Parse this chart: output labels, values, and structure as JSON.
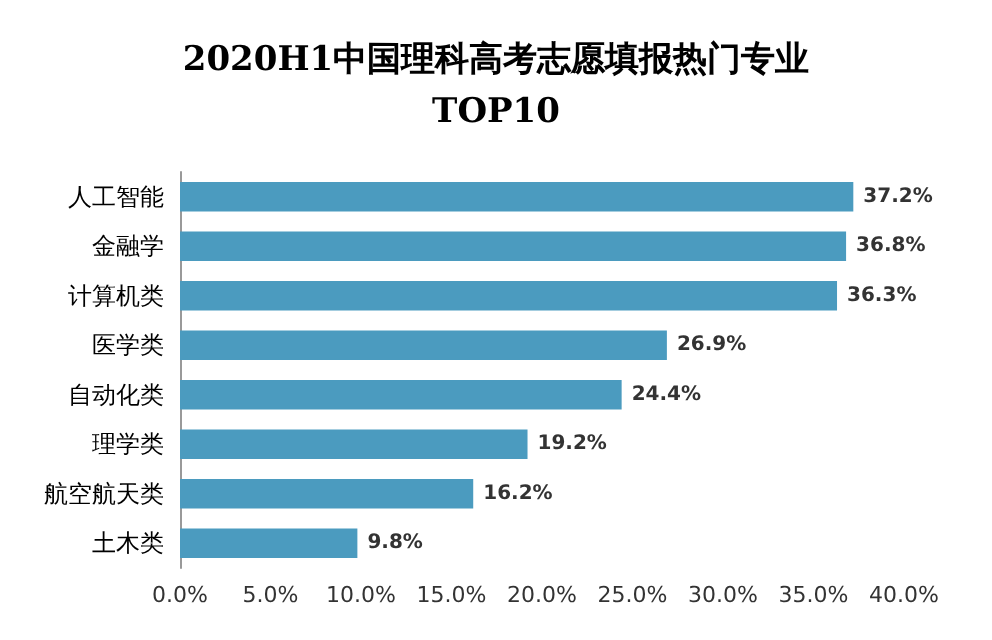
{
  "chart_data": {
    "type": "bar",
    "orientation": "horizontal",
    "title": "2020H1中国理科高考志愿填报热门专业\nTOP10",
    "categories": [
      "人工智能",
      "金融学",
      "计算机类",
      "医学类",
      "自动化类",
      "理学类",
      "航空航天类",
      "土木类"
    ],
    "values": [
      37.2,
      36.8,
      36.3,
      26.9,
      24.4,
      19.2,
      16.2,
      9.8
    ],
    "value_labels": [
      "37.2%",
      "36.8%",
      "36.3%",
      "26.9%",
      "24.4%",
      "19.2%",
      "16.2%",
      "9.8%"
    ],
    "color": "#4b9bbf",
    "xlim": [
      0,
      40
    ],
    "xticks": [
      {
        "value": 0,
        "label": "0.0%"
      },
      {
        "value": 5,
        "label": "5.0%"
      },
      {
        "value": 10,
        "label": "10.0%"
      },
      {
        "value": 15,
        "label": "15.0%"
      },
      {
        "value": 20,
        "label": "20.0%"
      },
      {
        "value": 25,
        "label": "25.0%"
      },
      {
        "value": 30,
        "label": "30.0%"
      },
      {
        "value": 35,
        "label": "35.0%"
      },
      {
        "value": 40,
        "label": "40.0%"
      }
    ],
    "grid": false
  }
}
